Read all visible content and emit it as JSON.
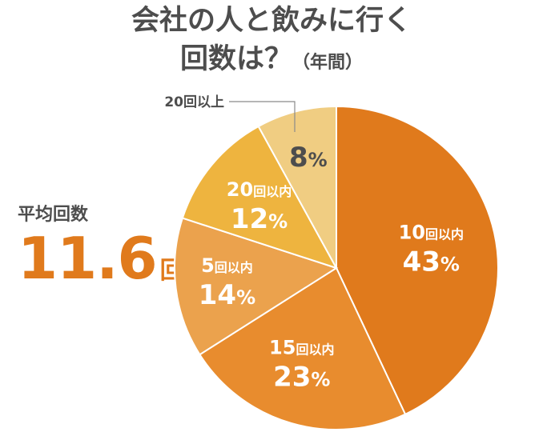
{
  "title": {
    "line1": "会社の人と飲みに行く",
    "line2": "回数は？",
    "line2_sub": "（年間）"
  },
  "average": {
    "label": "平均回数",
    "value": "11.6",
    "unit": "回"
  },
  "chart_data": {
    "type": "pie",
    "title": "会社の人と飲みに行く回数は？（年間）",
    "slices": [
      {
        "label": "10回以内",
        "value": 43,
        "value_label": "43%",
        "color": "#e07a1c"
      },
      {
        "label": "15回以内",
        "value": 23,
        "value_label": "23%",
        "color": "#e88c2e"
      },
      {
        "label": "5回以内",
        "value": 14,
        "value_label": "14%",
        "color": "#eba24d"
      },
      {
        "label": "20回以内",
        "value": 12,
        "value_label": "12%",
        "color": "#eeb43f"
      },
      {
        "label": "20回以上",
        "value": 8,
        "value_label": "8%",
        "color": "#f0cd82"
      }
    ],
    "start": "12 o'clock",
    "direction": "clockwise",
    "legend": "none"
  }
}
